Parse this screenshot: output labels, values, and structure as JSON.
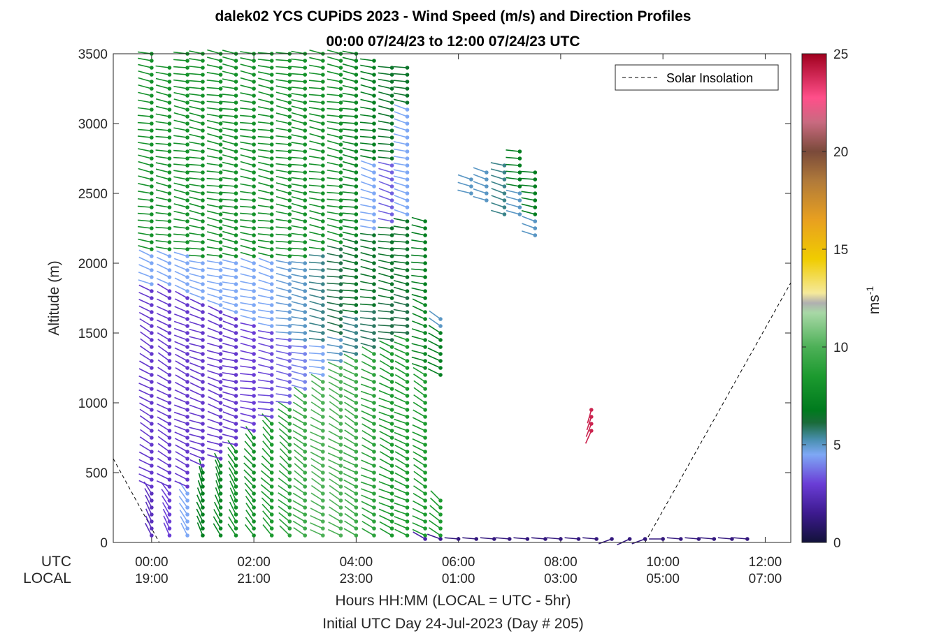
{
  "chart_data": {
    "type": "wind-barb-profile",
    "title_line1": "dalek02 YCS CUPiDS 2023 - Wind Speed (m/s) and Direction Profiles",
    "title_line2": "00:00 07/24/23 to 12:00 07/24/23  UTC",
    "ylabel": "Altitude (m)",
    "xlabel": "Hours HH:MM  (LOCAL = UTC - 5hr)",
    "xlabel2": "Initial UTC Day 24-Jul-2023 (Day # 205)",
    "row_utc_label": "UTC",
    "row_local_label": "LOCAL",
    "xlim": [
      -0.75,
      12.5
    ],
    "ylim": [
      0,
      3500
    ],
    "yticks": [
      0,
      500,
      1000,
      1500,
      2000,
      2500,
      3000,
      3500
    ],
    "xticks_utc": [
      "00:00",
      "02:00",
      "04:00",
      "06:00",
      "08:00",
      "10:00",
      "12:00"
    ],
    "xticks_local": [
      "19:00",
      "21:00",
      "23:00",
      "01:00",
      "03:00",
      "05:00",
      "07:00"
    ],
    "xtick_hours": [
      0,
      2,
      4,
      6,
      8,
      10,
      12
    ],
    "legend": {
      "label": "Solar Insolation",
      "location": "top-right",
      "style": "dashed black"
    },
    "colorbar": {
      "label": "ms-1",
      "label_main": "ms",
      "label_sup": "-1",
      "range": [
        0,
        25
      ],
      "ticks": [
        "0",
        "5",
        "10",
        "15",
        "20",
        "25"
      ],
      "tick_values": [
        0,
        5,
        10,
        15,
        20,
        25
      ]
    },
    "solar_insolation": [
      {
        "hour": -0.75,
        "alt": 600
      },
      {
        "hour": 0.15,
        "alt": 0
      },
      {
        "hour": 9.65,
        "alt": 0
      },
      {
        "hour": 12.5,
        "alt": 1860
      }
    ],
    "profiles": [
      {
        "hour": 0.0,
        "top": 3500,
        "step": 50,
        "bands": [
          {
            "to": 350,
            "speed": 2.5,
            "dir": 330
          },
          {
            "to": 1800,
            "speed": 2.8,
            "dir": 300
          },
          {
            "to": 2050,
            "speed": 4.5,
            "dir": 290
          },
          {
            "to": 3500,
            "speed": 8.0,
            "dir": 280
          }
        ]
      },
      {
        "hour": 0.35,
        "top": 3400,
        "step": 50,
        "bands": [
          {
            "to": 350,
            "speed": 3.0,
            "dir": 330
          },
          {
            "to": 1800,
            "speed": 2.8,
            "dir": 300
          },
          {
            "to": 2050,
            "speed": 4.5,
            "dir": 290
          },
          {
            "to": 3400,
            "speed": 8.0,
            "dir": 280
          }
        ]
      },
      {
        "hour": 0.7,
        "top": 3500,
        "step": 50,
        "bands": [
          {
            "to": 350,
            "speed": 4.5,
            "dir": 330
          },
          {
            "to": 1750,
            "speed": 2.8,
            "dir": 295
          },
          {
            "to": 2050,
            "speed": 4.5,
            "dir": 290
          },
          {
            "to": 3500,
            "speed": 8.0,
            "dir": 280
          }
        ]
      },
      {
        "hour": 1.0,
        "top": 3500,
        "step": 50,
        "bands": [
          {
            "to": 500,
            "speed": 7.0,
            "dir": 340
          },
          {
            "to": 1700,
            "speed": 2.8,
            "dir": 290
          },
          {
            "to": 2000,
            "speed": 4.5,
            "dir": 285
          },
          {
            "to": 3500,
            "speed": 8.0,
            "dir": 280
          }
        ]
      },
      {
        "hour": 1.35,
        "top": 3500,
        "step": 50,
        "bands": [
          {
            "to": 550,
            "speed": 7.5,
            "dir": 335
          },
          {
            "to": 1650,
            "speed": 2.8,
            "dir": 290
          },
          {
            "to": 2000,
            "speed": 4.5,
            "dir": 285
          },
          {
            "to": 3500,
            "speed": 8.0,
            "dir": 280
          }
        ]
      },
      {
        "hour": 1.65,
        "top": 3500,
        "step": 50,
        "bands": [
          {
            "to": 650,
            "speed": 8.0,
            "dir": 330
          },
          {
            "to": 1600,
            "speed": 2.8,
            "dir": 285
          },
          {
            "to": 2000,
            "speed": 4.5,
            "dir": 285
          },
          {
            "to": 3500,
            "speed": 8.0,
            "dir": 280
          }
        ]
      },
      {
        "hour": 2.0,
        "top": 3500,
        "step": 50,
        "bands": [
          {
            "to": 750,
            "speed": 8.0,
            "dir": 320
          },
          {
            "to": 1550,
            "speed": 3.0,
            "dir": 280
          },
          {
            "to": 2000,
            "speed": 4.5,
            "dir": 285
          },
          {
            "to": 3500,
            "speed": 8.0,
            "dir": 280
          }
        ]
      },
      {
        "hour": 2.35,
        "top": 3500,
        "step": 50,
        "bands": [
          {
            "to": 850,
            "speed": 8.5,
            "dir": 315
          },
          {
            "to": 1500,
            "speed": 3.2,
            "dir": 280
          },
          {
            "to": 2000,
            "speed": 4.5,
            "dir": 285
          },
          {
            "to": 3500,
            "speed": 8.0,
            "dir": 280
          }
        ]
      },
      {
        "hour": 2.7,
        "top": 3500,
        "step": 50,
        "bands": [
          {
            "to": 950,
            "speed": 9.0,
            "dir": 310
          },
          {
            "to": 1450,
            "speed": 3.5,
            "dir": 280
          },
          {
            "to": 2000,
            "speed": 4.8,
            "dir": 280
          },
          {
            "to": 3500,
            "speed": 8.0,
            "dir": 280
          }
        ]
      },
      {
        "hour": 3.0,
        "top": 3500,
        "step": 50,
        "bands": [
          {
            "to": 1050,
            "speed": 9.5,
            "dir": 305
          },
          {
            "to": 1400,
            "speed": 4.0,
            "dir": 280
          },
          {
            "to": 2000,
            "speed": 5.0,
            "dir": 280
          },
          {
            "to": 3500,
            "speed": 8.0,
            "dir": 280
          }
        ]
      },
      {
        "hour": 3.35,
        "top": 3500,
        "step": 50,
        "bands": [
          {
            "to": 1150,
            "speed": 10.0,
            "dir": 300
          },
          {
            "to": 1400,
            "speed": 4.5,
            "dir": 280
          },
          {
            "to": 2050,
            "speed": 5.5,
            "dir": 280
          },
          {
            "to": 3500,
            "speed": 8.0,
            "dir": 280
          }
        ]
      },
      {
        "hour": 3.7,
        "top": 3500,
        "step": 50,
        "bands": [
          {
            "to": 1250,
            "speed": 10.0,
            "dir": 300
          },
          {
            "to": 1450,
            "speed": 5.0,
            "dir": 280
          },
          {
            "to": 2100,
            "speed": 6.0,
            "dir": 280
          },
          {
            "to": 3500,
            "speed": 8.0,
            "dir": 280
          }
        ]
      },
      {
        "hour": 4.0,
        "top": 3500,
        "step": 50,
        "bands": [
          {
            "to": 1300,
            "speed": 9.5,
            "dir": 300
          },
          {
            "to": 1600,
            "speed": 5.5,
            "dir": 280
          },
          {
            "to": 2150,
            "speed": 6.5,
            "dir": 280
          },
          {
            "to": 3500,
            "speed": 7.5,
            "dir": 280
          }
        ]
      },
      {
        "hour": 4.35,
        "top": 3450,
        "step": 50,
        "bands": [
          {
            "to": 1350,
            "speed": 9.0,
            "dir": 295
          },
          {
            "to": 1650,
            "speed": 5.8,
            "dir": 280
          },
          {
            "to": 2200,
            "speed": 6.5,
            "dir": 280
          },
          {
            "to": 2700,
            "speed": 4.5,
            "dir": 285
          },
          {
            "to": 3450,
            "speed": 7.0,
            "dir": 280
          }
        ]
      },
      {
        "hour": 4.7,
        "top": 3400,
        "step": 50,
        "bands": [
          {
            "to": 1400,
            "speed": 8.5,
            "dir": 295
          },
          {
            "to": 1700,
            "speed": 6.0,
            "dir": 280
          },
          {
            "to": 2250,
            "speed": 6.5,
            "dir": 280
          },
          {
            "to": 2700,
            "speed": 3.5,
            "dir": 285
          },
          {
            "to": 3400,
            "speed": 6.5,
            "dir": 280
          }
        ]
      },
      {
        "hour": 5.0,
        "top": 3400,
        "step": 50,
        "bands": [
          {
            "to": 1450,
            "speed": 8.5,
            "dir": 295
          },
          {
            "to": 1750,
            "speed": 6.0,
            "dir": 280
          },
          {
            "to": 2300,
            "speed": 6.5,
            "dir": 280
          },
          {
            "to": 3100,
            "speed": 4.5,
            "dir": 285
          },
          {
            "to": 3400,
            "speed": 6.5,
            "dir": 280
          }
        ]
      },
      {
        "hour": 5.35,
        "top": 2300,
        "step": 50,
        "bands": [
          {
            "to": 1200,
            "speed": 8.5,
            "dir": 300
          },
          {
            "to": 1700,
            "speed": 7.5,
            "dir": 290
          },
          {
            "to": 2300,
            "speed": 7.0,
            "dir": 280
          }
        ]
      },
      {
        "hour": 5.65,
        "top": 1600,
        "step": 50,
        "bands": [
          {
            "to": 300,
            "speed": 8.5,
            "dir": 310
          },
          {
            "to": 1150,
            "speed": 0,
            "dir": 0
          },
          {
            "to": 1500,
            "speed": 7.0,
            "dir": 300
          },
          {
            "to": 1600,
            "speed": 5.0,
            "dir": 300
          }
        ]
      },
      {
        "hour": 6.25,
        "top": 2600,
        "step": 50,
        "bands": [
          {
            "to": 2450,
            "speed": 0,
            "dir": 0
          },
          {
            "to": 2600,
            "speed": 5.0,
            "dir": 285
          }
        ]
      },
      {
        "hour": 6.55,
        "top": 2650,
        "step": 50,
        "bands": [
          {
            "to": 2400,
            "speed": 0,
            "dir": 0
          },
          {
            "to": 2650,
            "speed": 5.0,
            "dir": 285
          }
        ]
      },
      {
        "hour": 6.9,
        "top": 2700,
        "step": 50,
        "bands": [
          {
            "to": 2300,
            "speed": 0,
            "dir": 0
          },
          {
            "to": 2700,
            "speed": 5.5,
            "dir": 285
          }
        ]
      },
      {
        "hour": 7.2,
        "top": 2800,
        "step": 50,
        "bands": [
          {
            "to": 2300,
            "speed": 0,
            "dir": 0
          },
          {
            "to": 2500,
            "speed": 5.0,
            "dir": 280
          },
          {
            "to": 2800,
            "speed": 7.0,
            "dir": 280
          }
        ]
      },
      {
        "hour": 7.5,
        "top": 2650,
        "step": 50,
        "bands": [
          {
            "to": 2150,
            "speed": 0,
            "dir": 0
          },
          {
            "to": 2300,
            "speed": 5.0,
            "dir": 285
          },
          {
            "to": 2650,
            "speed": 7.0,
            "dir": 280
          }
        ]
      },
      {
        "hour": 8.6,
        "top": 950,
        "step": 50,
        "bands": [
          {
            "to": 750,
            "speed": 0,
            "dir": 0
          },
          {
            "to": 950,
            "speed": 24.0,
            "dir": 200
          }
        ]
      }
    ],
    "surface": [
      {
        "hour": 5.35,
        "speed": 2.0,
        "dir": 300
      },
      {
        "hour": 5.65,
        "speed": 1.5,
        "dir": 290
      },
      {
        "hour": 6.0,
        "speed": 1.2,
        "dir": 275
      },
      {
        "hour": 6.35,
        "speed": 1.2,
        "dir": 275
      },
      {
        "hour": 6.7,
        "speed": 1.2,
        "dir": 275
      },
      {
        "hour": 7.0,
        "speed": 1.2,
        "dir": 275
      },
      {
        "hour": 7.35,
        "speed": 1.2,
        "dir": 275
      },
      {
        "hour": 7.7,
        "speed": 1.2,
        "dir": 275
      },
      {
        "hour": 8.0,
        "speed": 1.2,
        "dir": 275
      },
      {
        "hour": 8.35,
        "speed": 1.2,
        "dir": 275
      },
      {
        "hour": 8.7,
        "speed": 1.2,
        "dir": 275
      },
      {
        "hour": 9.0,
        "speed": 1.2,
        "dir": 250
      },
      {
        "hour": 9.35,
        "speed": 1.2,
        "dir": 245
      },
      {
        "hour": 9.65,
        "speed": 1.2,
        "dir": 250
      },
      {
        "hour": 10.0,
        "speed": 1.2,
        "dir": 270
      },
      {
        "hour": 10.35,
        "speed": 1.2,
        "dir": 275
      },
      {
        "hour": 10.7,
        "speed": 1.2,
        "dir": 275
      },
      {
        "hour": 11.0,
        "speed": 1.2,
        "dir": 275
      },
      {
        "hour": 11.35,
        "speed": 1.2,
        "dir": 275
      },
      {
        "hour": 11.65,
        "speed": 1.2,
        "dir": 275
      }
    ]
  }
}
